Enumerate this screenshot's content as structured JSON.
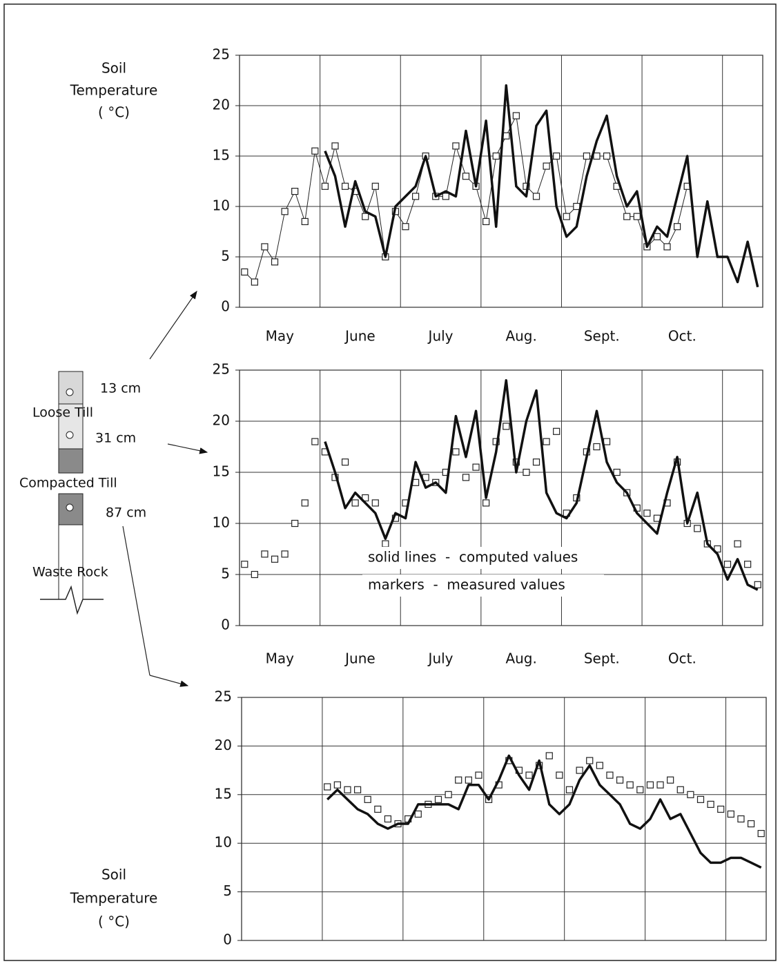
{
  "diagram": {
    "labels": [
      "13 cm",
      "Loose Till",
      "31 cm",
      "Compacted Till",
      "87 cm",
      "Waste Rock"
    ]
  },
  "chart_data": [
    {
      "type": "line",
      "y_label": [
        "Soil",
        "Temperature",
        "( °C)"
      ],
      "categories": [
        null,
        null,
        null,
        null,
        "May",
        null,
        null,
        null,
        null,
        null,
        null,
        null,
        "June",
        null,
        null,
        null,
        null,
        null,
        null,
        null,
        "July",
        null,
        null,
        null,
        null,
        null,
        null,
        null,
        "Aug.",
        null,
        null,
        null,
        null,
        null,
        null,
        null,
        "Sept.",
        null,
        null,
        null,
        null,
        null,
        null,
        null,
        "Oct.",
        null,
        null,
        null,
        null,
        null,
        null,
        null
      ],
      "ylim": [
        0,
        25
      ],
      "yticks": [
        0,
        5,
        10,
        15,
        20,
        25
      ],
      "grid": true,
      "series": [
        {
          "color": "#222222",
          "line_width": 1,
          "marker": "square",
          "values": [
            3.5,
            2.5,
            6,
            4.5,
            9.5,
            11.5,
            8.5,
            15.5,
            12,
            16,
            12,
            11.5,
            9,
            12,
            5,
            9.5,
            8,
            11,
            15,
            11,
            11,
            16,
            13,
            12,
            8.5,
            15,
            17,
            19,
            12,
            11,
            14,
            15,
            9,
            10,
            15,
            15,
            15,
            12,
            9,
            9,
            6,
            7,
            6,
            8,
            12,
            null,
            null,
            null,
            null,
            null,
            null,
            null
          ]
        },
        {
          "color": "#111111",
          "line_width": 3.5,
          "marker": null,
          "values": [
            null,
            null,
            null,
            null,
            null,
            null,
            null,
            null,
            15.5,
            13,
            8,
            12.5,
            9.5,
            9,
            5,
            10,
            11,
            12,
            15,
            11,
            11.5,
            11,
            17.5,
            12,
            18.5,
            8,
            22,
            12,
            11,
            18,
            19.5,
            10,
            7,
            8,
            13,
            16.5,
            19,
            13,
            10,
            11.5,
            6,
            8,
            7,
            11,
            15,
            5,
            10.5,
            5,
            5,
            2.5,
            6.5,
            2
          ]
        }
      ]
    },
    {
      "type": "line",
      "annotations": [
        "solid lines  -  computed values",
        "markers  -  measured values"
      ],
      "categories": [
        null,
        null,
        null,
        null,
        "May",
        null,
        null,
        null,
        null,
        null,
        null,
        null,
        "June",
        null,
        null,
        null,
        null,
        null,
        null,
        null,
        "July",
        null,
        null,
        null,
        null,
        null,
        null,
        null,
        "Aug.",
        null,
        null,
        null,
        null,
        null,
        null,
        null,
        "Sept.",
        null,
        null,
        null,
        null,
        null,
        null,
        null,
        "Oct.",
        null,
        null,
        null,
        null,
        null,
        null,
        null
      ],
      "ylim": [
        0,
        25
      ],
      "yticks": [
        0,
        5,
        10,
        15,
        20,
        25
      ],
      "grid": true,
      "series": [
        {
          "color": "#222222",
          "line_width": 0,
          "marker": "square",
          "values": [
            6,
            5,
            7,
            6.5,
            7,
            10,
            12,
            18,
            17,
            14.5,
            16,
            12,
            12.5,
            12,
            8,
            10.5,
            12,
            14,
            14.5,
            14,
            15,
            17,
            14.5,
            15.5,
            12,
            18,
            19.5,
            16,
            15,
            16,
            18,
            19,
            11,
            12.5,
            17,
            17.5,
            18,
            15,
            13,
            11.5,
            11,
            10.5,
            12,
            16,
            10,
            9.5,
            8,
            7.5,
            6,
            8,
            6,
            4
          ]
        },
        {
          "color": "#111111",
          "line_width": 3.5,
          "marker": null,
          "values": [
            null,
            null,
            null,
            null,
            null,
            null,
            null,
            null,
            18,
            15,
            11.5,
            13,
            12,
            11,
            8.5,
            11,
            10.5,
            16,
            13.5,
            14,
            13,
            20.5,
            16.5,
            21,
            12.5,
            17,
            24,
            15,
            20,
            23,
            13,
            11,
            10.5,
            12,
            16.5,
            21,
            16,
            14,
            13,
            11,
            10,
            9,
            13,
            16.5,
            10,
            13,
            8,
            7,
            4.5,
            6.5,
            4,
            3.5
          ]
        }
      ]
    },
    {
      "type": "line",
      "y_label": [
        "Soil",
        "Temperature",
        "( °C)"
      ],
      "categories": [
        null,
        null,
        null,
        null,
        null,
        null,
        null,
        null,
        null,
        null,
        null,
        null,
        null,
        null,
        null,
        null,
        null,
        null,
        null,
        null,
        null,
        null,
        null,
        null,
        null,
        null,
        null,
        null,
        null,
        null,
        null,
        null,
        null,
        null,
        null,
        null,
        null,
        null,
        null,
        null,
        null,
        null,
        null,
        null,
        null,
        null,
        null,
        null,
        null,
        null,
        null,
        null
      ],
      "ylim": [
        0,
        25
      ],
      "yticks": [
        0,
        5,
        10,
        15,
        20,
        25
      ],
      "grid": true,
      "series": [
        {
          "color": "#222222",
          "line_width": 0,
          "marker": "square",
          "values": [
            null,
            null,
            null,
            null,
            null,
            null,
            null,
            null,
            15.8,
            16,
            15.5,
            15.5,
            14.5,
            13.5,
            12.5,
            12,
            12.5,
            13,
            14,
            14.5,
            15,
            16.5,
            16.5,
            17,
            14.5,
            16,
            18.5,
            17.5,
            17,
            18,
            19,
            17,
            15.5,
            17.5,
            18.5,
            18,
            17,
            16.5,
            16,
            15.5,
            16,
            16,
            16.5,
            15.5,
            15,
            14.5,
            14,
            13.5,
            13,
            12.5,
            12,
            11
          ]
        },
        {
          "color": "#111111",
          "line_width": 3.5,
          "marker": null,
          "values": [
            null,
            null,
            null,
            null,
            null,
            null,
            null,
            null,
            14.5,
            15.5,
            14.5,
            13.5,
            13,
            12,
            11.5,
            12,
            12,
            14,
            14,
            14,
            14,
            13.5,
            16,
            16,
            14.5,
            16.5,
            19,
            17,
            15.5,
            18.5,
            14,
            13,
            14,
            16.5,
            18,
            16,
            15,
            14,
            12,
            11.5,
            12.5,
            14.5,
            12.5,
            13,
            11,
            9,
            8,
            8,
            8.5,
            8.5,
            8,
            7.5
          ]
        }
      ]
    }
  ]
}
